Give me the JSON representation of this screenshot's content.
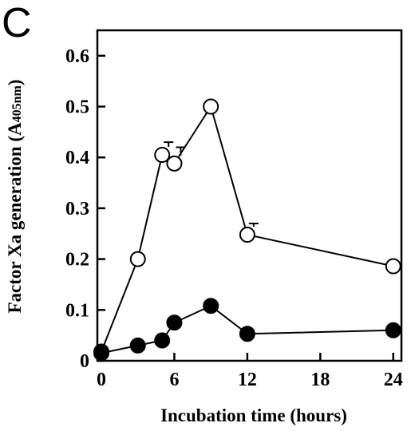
{
  "panel_label": "C",
  "chart_data": {
    "type": "line",
    "title": "",
    "xlabel": "Incubation time (hours)",
    "ylabel": "Factor Xa generation (A405nm)",
    "ylabel_main": "Factor Xa generation (A",
    "ylabel_sub": "405nm",
    "ylabel_end": ")",
    "xlim": [
      0,
      25
    ],
    "ylim": [
      0,
      0.65
    ],
    "xticks": [
      0,
      6,
      12,
      18,
      24
    ],
    "yticks": [
      0,
      0.1,
      0.2,
      0.3,
      0.4,
      0.5,
      0.6
    ],
    "xtick_labels": [
      "0",
      "6",
      "12",
      "18",
      "24"
    ],
    "ytick_labels": [
      "0",
      "0.1",
      "0.2",
      "0.3",
      "0.4",
      "0.5",
      "0.6"
    ],
    "grid": false,
    "series": [
      {
        "marker": "open-circle",
        "x": [
          0,
          3,
          5,
          6,
          9,
          12,
          24
        ],
        "y": [
          0.018,
          0.2,
          0.405,
          0.388,
          0.5,
          0.248,
          0.186
        ],
        "error_upper": [
          null,
          null,
          0.43,
          0.42,
          null,
          0.27,
          null
        ]
      },
      {
        "marker": "filled-circle",
        "x": [
          0,
          3,
          5,
          6,
          9,
          12,
          24
        ],
        "y": [
          0.015,
          0.03,
          0.04,
          0.075,
          0.108,
          0.053,
          0.06
        ],
        "error_upper": [
          null,
          null,
          null,
          null,
          null,
          null,
          null
        ]
      }
    ]
  }
}
